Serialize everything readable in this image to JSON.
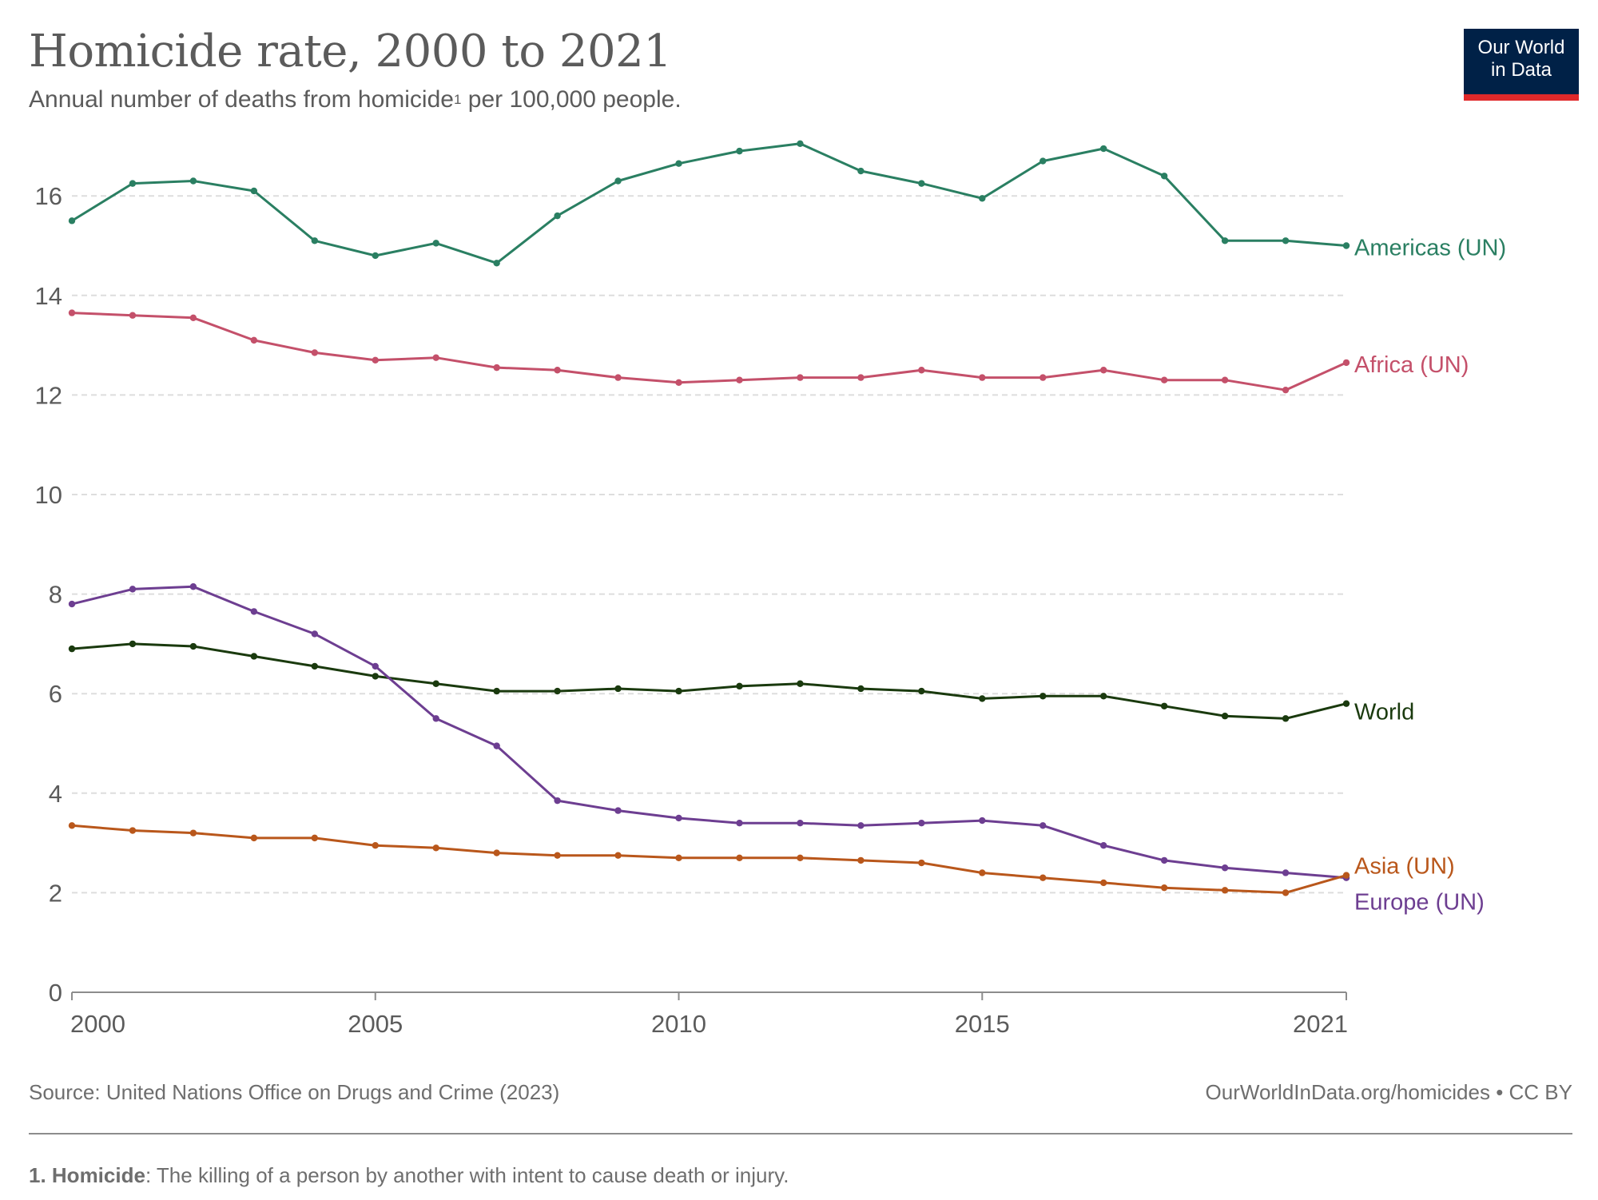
{
  "header": {
    "title": "Homicide rate, 2000 to 2021",
    "subtitle_pre": "Annual number of deaths from homicide",
    "subtitle_sup": "1",
    "subtitle_post": " per 100,000 people."
  },
  "logo": {
    "line1": "Our World",
    "line2": "in Data"
  },
  "footer": {
    "source": "Source: United Nations Office on Drugs and Crime (2023)",
    "credit": "OurWorldInData.org/homicides • CC BY"
  },
  "note": {
    "term": "1. Homicide",
    "definition": ": The killing of a person by another with intent to cause death or injury."
  },
  "colors": {
    "americas": "#2a7f62",
    "africa": "#c4506a",
    "world": "#1a3a0e",
    "europe": "#6d3e91",
    "asia": "#b9571b",
    "grid": "#dddddd",
    "axis": "#8c8c8c",
    "tick_text": "#5b5b5b"
  },
  "chart_data": {
    "type": "line",
    "x": [
      2000,
      2001,
      2002,
      2003,
      2004,
      2005,
      2006,
      2007,
      2008,
      2009,
      2010,
      2011,
      2012,
      2013,
      2014,
      2015,
      2016,
      2017,
      2018,
      2019,
      2020,
      2021
    ],
    "xlim": [
      2000,
      2021
    ],
    "ylim": [
      0,
      17.5
    ],
    "x_ticks": [
      "2000",
      "2005",
      "2010",
      "2015",
      "2021"
    ],
    "y_ticks": [
      "0",
      "2",
      "4",
      "6",
      "8",
      "10",
      "12",
      "14",
      "16"
    ],
    "grid": "horizontal dashed",
    "legend": "inline labels at line ends (right)",
    "series": [
      {
        "name": "Americas (UN)",
        "color_key": "americas",
        "values": [
          15.5,
          16.25,
          16.3,
          16.1,
          15.1,
          14.8,
          15.05,
          14.65,
          15.6,
          16.3,
          16.65,
          16.9,
          17.05,
          16.5,
          16.25,
          15.95,
          16.7,
          16.95,
          16.4,
          15.1,
          15.1,
          15.0
        ]
      },
      {
        "name": "Africa (UN)",
        "color_key": "africa",
        "values": [
          13.65,
          13.6,
          13.55,
          13.1,
          12.85,
          12.7,
          12.75,
          12.55,
          12.5,
          12.35,
          12.25,
          12.3,
          12.35,
          12.35,
          12.5,
          12.35,
          12.35,
          12.5,
          12.3,
          12.3,
          12.1,
          12.65
        ]
      },
      {
        "name": "World",
        "color_key": "world",
        "values": [
          6.9,
          7.0,
          6.95,
          6.75,
          6.55,
          6.35,
          6.2,
          6.05,
          6.05,
          6.1,
          6.05,
          6.15,
          6.2,
          6.1,
          6.05,
          5.9,
          5.95,
          5.95,
          5.75,
          5.55,
          5.5,
          5.8
        ]
      },
      {
        "name": "Europe (UN)",
        "color_key": "europe",
        "values": [
          7.8,
          8.1,
          8.15,
          7.65,
          7.2,
          6.55,
          5.5,
          4.95,
          3.85,
          3.65,
          3.5,
          3.4,
          3.4,
          3.35,
          3.4,
          3.45,
          3.35,
          2.95,
          2.65,
          2.5,
          2.4,
          2.3
        ]
      },
      {
        "name": "Asia (UN)",
        "color_key": "asia",
        "values": [
          3.35,
          3.25,
          3.2,
          3.1,
          3.1,
          2.95,
          2.9,
          2.8,
          2.75,
          2.75,
          2.7,
          2.7,
          2.7,
          2.65,
          2.6,
          2.4,
          2.3,
          2.2,
          2.1,
          2.05,
          2.0,
          2.35
        ]
      }
    ]
  }
}
